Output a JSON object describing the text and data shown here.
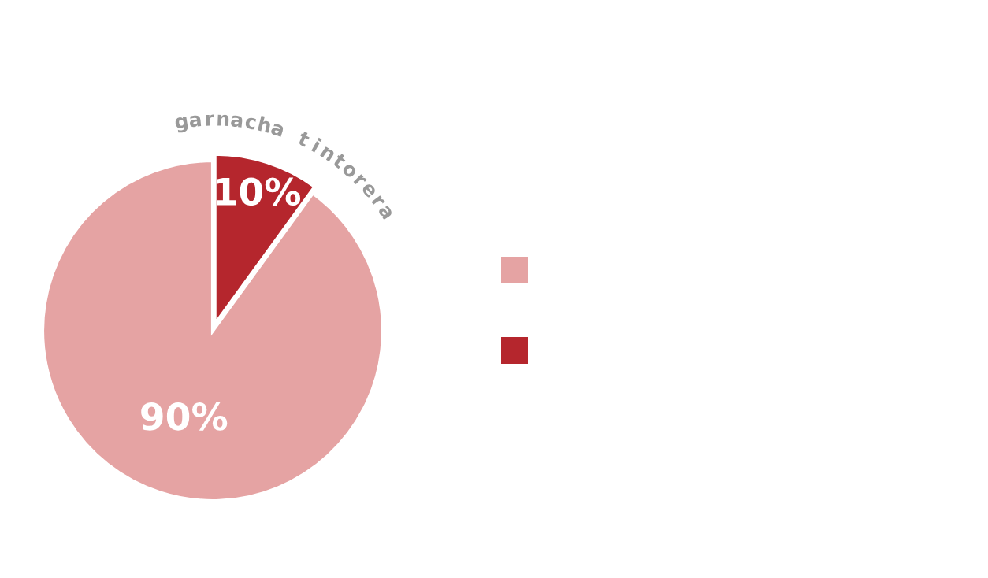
{
  "chart_data": {
    "type": "pie",
    "categories": [
      null,
      "garnacha tintorera"
    ],
    "values": [
      90,
      10
    ],
    "value_labels": [
      "90%",
      "10%"
    ],
    "colors": [
      "#e5a3a3",
      "#b5262d"
    ]
  }
}
